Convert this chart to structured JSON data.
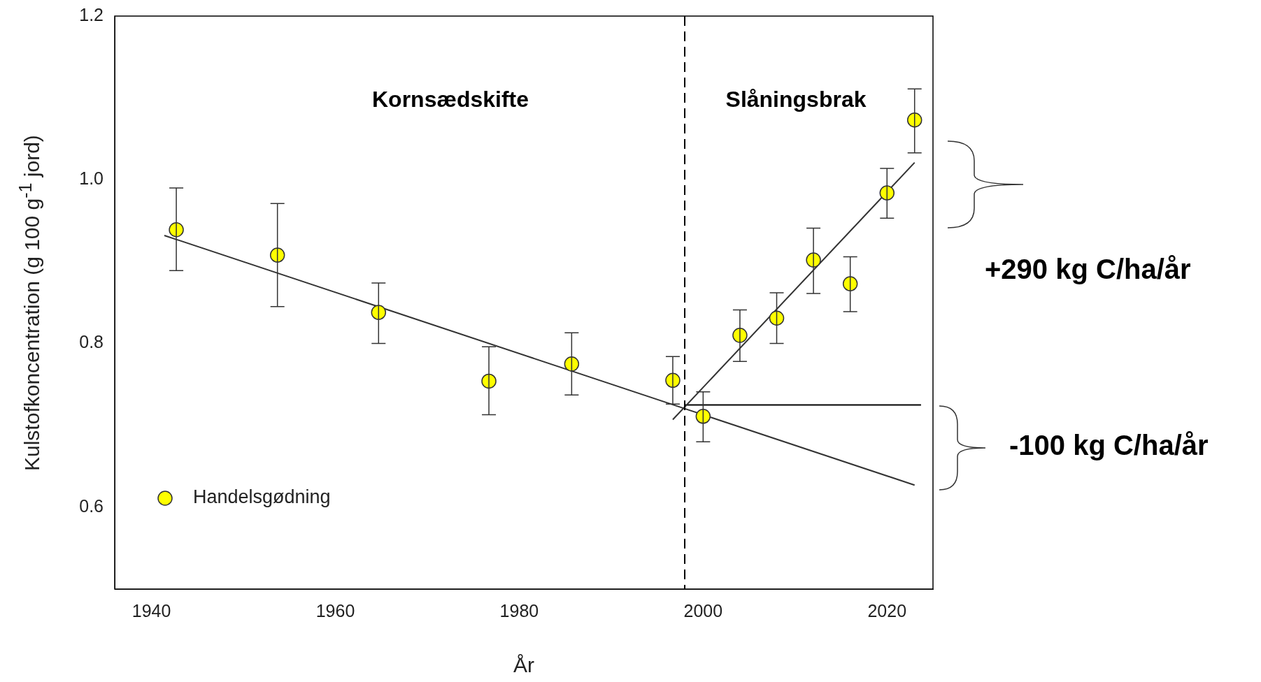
{
  "chart_data": {
    "type": "scatter",
    "xlabel": "År",
    "ylabel": "Kulstofkoncentration (g 100 g$^{-1}$ jord)",
    "xlim": [
      1936,
      2025
    ],
    "xticks": [
      1940,
      1960,
      1980,
      2000,
      2020
    ],
    "ylim": [
      0.5,
      1.2
    ],
    "yticks": [
      0.6,
      0.8,
      {
        "value": 1,
        "label": "1.0"
      },
      1.2
    ],
    "grid": false,
    "legend": "bottom left",
    "series": [
      {
        "name": "Handelsgødning",
        "marker": "circle",
        "color": "#ffff00",
        "x": [
          1942.7,
          1953.7,
          1964.7,
          1976.7,
          1985.7,
          1996.7,
          2000,
          2004,
          2008,
          2012,
          2016,
          2020,
          2023
        ],
        "values": [
          0.939,
          0.908,
          0.838,
          0.754,
          0.775,
          0.755,
          0.711,
          0.81,
          0.831,
          0.902,
          0.873,
          0.984,
          1.073
        ],
        "errors": [
          [
            0.889,
            0.99
          ],
          [
            0.845,
            0.971
          ],
          [
            0.8,
            0.874
          ],
          [
            0.713,
            0.796
          ],
          [
            0.737,
            0.813
          ],
          [
            0.726,
            0.784
          ],
          [
            0.68,
            0.741
          ],
          [
            0.778,
            0.841
          ],
          [
            0.8,
            0.862
          ],
          [
            0.861,
            0.941
          ],
          [
            0.839,
            0.906
          ],
          [
            0.953,
            1.014
          ],
          [
            1.033,
            1.111
          ]
        ]
      },
      {
        "type": "line",
        "color": "#333333",
        "x": [
          1941.4,
          2023
        ],
        "values": [
          0.932,
          0.627
        ]
      },
      {
        "type": "line",
        "color": "#333333",
        "x": [
          1996.7,
          2023
        ],
        "values": [
          0.707,
          1.021
        ]
      },
      {
        "type": "line",
        "color": "#000000",
        "x": [
          1998,
          2023.7
        ],
        "values": [
          0.725,
          0.725
        ]
      }
    ],
    "ref_lines": [
      {
        "axis": "x",
        "value": 1998,
        "line_style": "dashed",
        "color": "#000000"
      }
    ],
    "annotations": [
      "Kornsædskifte",
      "Slåningsbrak",
      "+290 kg C/ha/år",
      "-100 kg C/ha/år"
    ]
  }
}
